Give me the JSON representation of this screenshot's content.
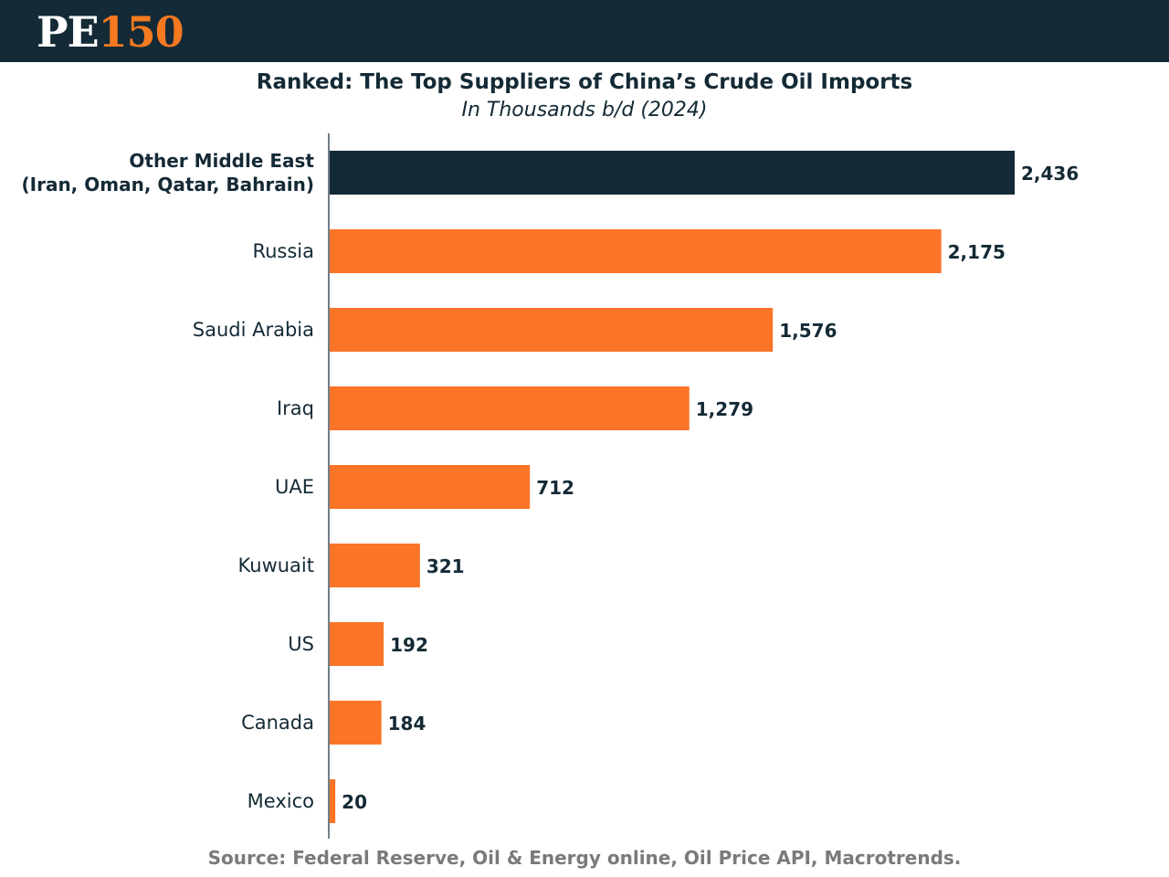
{
  "brand": {
    "logo_letters": "PE",
    "logo_number": "150"
  },
  "colors": {
    "header_background": "#142a36",
    "highlight_bar": "#142a36",
    "bar": "#fb7427",
    "logo_accent": "#f47920",
    "text_dark": "#142a36",
    "source_text": "#7a7a7a"
  },
  "chart_data": {
    "type": "bar",
    "orientation": "horizontal",
    "title": "Ranked: The Top Suppliers of China’s Crude Oil Imports",
    "subtitle": "In Thousands b/d (2024)",
    "categories": [
      "Other Middle East\n(Iran, Oman, Qatar, Bahrain)",
      "Russia",
      "Saudi Arabia",
      "Iraq",
      "UAE",
      "Kuwuait",
      "US",
      "Canada",
      "Mexico"
    ],
    "values": [
      2436,
      2175,
      1576,
      1279,
      712,
      321,
      192,
      184,
      20
    ],
    "value_labels": [
      "2,436",
      "2,175",
      "1,576",
      "1,279",
      "712",
      "321",
      "192",
      "184",
      "20"
    ],
    "highlighted_index": 0,
    "xlim": [
      0,
      2436
    ],
    "xlabel": "",
    "ylabel": "",
    "grid": false,
    "legend": "none"
  },
  "source": "Source: Federal Reserve, Oil & Energy online, Oil Price API, Macrotrends."
}
